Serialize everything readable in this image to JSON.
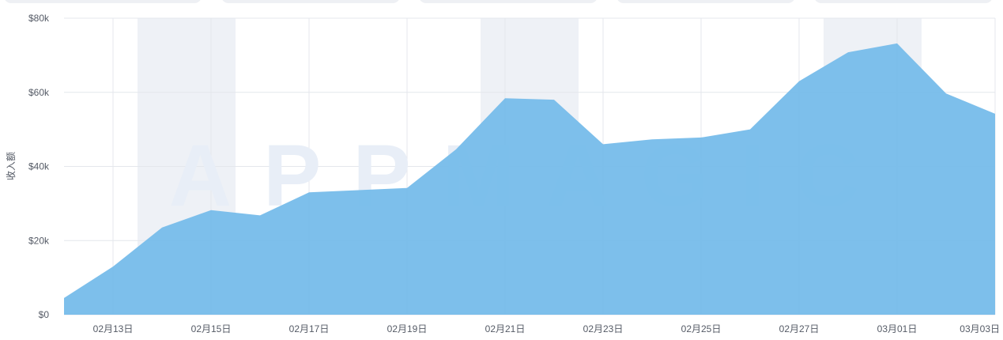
{
  "filter_tabs": [
    "",
    "",
    "",
    "",
    ""
  ],
  "watermark": "APPMAGIC",
  "chart_data": {
    "type": "area",
    "ylabel": "收入额",
    "xlabel": "",
    "title": "",
    "ylim": [
      0,
      80000
    ],
    "y_ticks": [
      0,
      20000,
      40000,
      60000,
      80000
    ],
    "y_tick_labels": [
      "$0",
      "$20k",
      "$40k",
      "$60k",
      "$80k"
    ],
    "x": [
      "02月12日",
      "02月13日",
      "02月14日",
      "02月15日",
      "02月16日",
      "02月17日",
      "02月18日",
      "02月19日",
      "02月20日",
      "02月21日",
      "02月22日",
      "02月23日",
      "02月24日",
      "02月25日",
      "02月26日",
      "02月27日",
      "02月28日",
      "03月01日",
      "03月02日",
      "03月03日"
    ],
    "x_tick_labels": [
      "02月13日",
      "02月15日",
      "02月17日",
      "02月19日",
      "02月21日",
      "02月23日",
      "02月25日",
      "02月27日",
      "03月01日",
      "03月03日"
    ],
    "weekend_bands": [
      [
        "02月14日",
        "02月15日"
      ],
      [
        "02月21日",
        "02月22日"
      ],
      [
        "02月28日",
        "03月01日"
      ]
    ],
    "series": [
      {
        "values": [
          4500,
          13000,
          23500,
          28200,
          26800,
          33000,
          33600,
          34200,
          44600,
          58400,
          58000,
          46000,
          47300,
          47800,
          50000,
          63000,
          70800,
          73200,
          59700,
          54200
        ]
      }
    ],
    "grid": true,
    "fill_color": "#76bcea",
    "band_color": "#eef1f6",
    "grid_color": "#e4e7ec"
  }
}
